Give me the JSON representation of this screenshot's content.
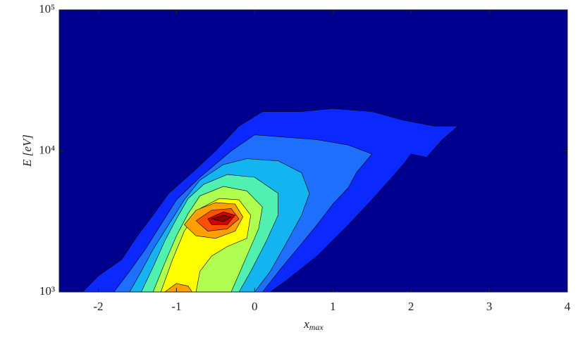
{
  "chart_data": {
    "type": "filled-contour",
    "xlabel": "x",
    "xlabel_sub": "max",
    "ylabel": "E [eV]",
    "xlim": [
      -2.5,
      4
    ],
    "xticks": [
      -2,
      -1,
      0,
      1,
      2,
      3,
      4
    ],
    "ylim": [
      1000,
      100000
    ],
    "yscale": "log",
    "yticks": [
      {
        "value": 1000,
        "label": "10³"
      },
      {
        "value": 10000,
        "label": "10⁴"
      },
      {
        "value": 100000,
        "label": "10⁵"
      }
    ],
    "background": "#00008f",
    "contours": [
      {
        "color": "#0a28ff",
        "x": [
          -2.2,
          -2.0,
          -1.7,
          -1.5,
          -1.3,
          -1.1,
          -0.8,
          -0.5,
          -0.2,
          0.1,
          0.6,
          1.0,
          1.5,
          1.9,
          2.3,
          2.6,
          2.4,
          2.2,
          2.0,
          1.9,
          1.7,
          1.5,
          1.2,
          0.8,
          0.4,
          0.2
        ],
        "y": [
          1000,
          1300,
          1700,
          2500,
          3500,
          5000,
          7000,
          10000,
          15000,
          19000,
          19000,
          20000,
          19000,
          16500,
          15000,
          15000,
          12000,
          9000,
          9500,
          8000,
          6000,
          4500,
          3000,
          1800,
          1200,
          1000
        ]
      },
      {
        "color": "#1f6fff",
        "x": [
          -1.8,
          -1.6,
          -1.4,
          -1.2,
          -1.0,
          -0.7,
          -0.3,
          0,
          0.4,
          0.8,
          1.2,
          1.5,
          1.3,
          1.2,
          1.0,
          0.8,
          0.6,
          0.35,
          0.1
        ],
        "y": [
          1000,
          1400,
          2000,
          3000,
          4500,
          6500,
          10000,
          13000,
          12500,
          12000,
          11000,
          9500,
          7000,
          5500,
          4200,
          3000,
          2200,
          1500,
          1000
        ]
      },
      {
        "color": "#14b4f0",
        "x": [
          -1.6,
          -1.45,
          -1.3,
          -1.1,
          -0.9,
          -0.7,
          -0.4,
          -0.1,
          0.3,
          0.6,
          0.7,
          0.6,
          0.4,
          0.2,
          0
        ],
        "y": [
          1000,
          1400,
          2000,
          3000,
          4500,
          6200,
          8000,
          8800,
          8500,
          7000,
          5000,
          3500,
          2200,
          1400,
          1000
        ]
      },
      {
        "color": "#50f0b0",
        "x": [
          -1.45,
          -1.3,
          -1.15,
          -1.0,
          -0.85,
          -0.65,
          -0.35,
          0,
          0.3,
          0.3,
          0.15,
          -0.05,
          -0.2
        ],
        "y": [
          1000,
          1500,
          2300,
          3300,
          4600,
          5800,
          6800,
          6500,
          5000,
          3500,
          2300,
          1400,
          1000
        ]
      },
      {
        "color": "#b0ff50",
        "x": [
          -1.3,
          -1.15,
          -1.0,
          -0.85,
          -0.7,
          -0.4,
          -0.1,
          0.1,
          0.05,
          -0.1,
          -0.3
        ],
        "y": [
          1000,
          1600,
          2500,
          3600,
          4800,
          5600,
          5200,
          4000,
          2800,
          1800,
          1000
        ]
      },
      {
        "color": "#ffff00",
        "x": [
          -1.2,
          -1.05,
          -0.9,
          -0.7,
          -0.45,
          -0.2,
          -0.05,
          -0.1,
          -0.35,
          -0.55,
          -0.7,
          -0.75
        ],
        "y": [
          1000,
          1700,
          2700,
          3900,
          4600,
          4500,
          3500,
          2400,
          2100,
          1800,
          1400,
          1000
        ]
      },
      {
        "color": "#ffa000",
        "x": [
          -0.9,
          -0.75,
          -0.5,
          -0.25,
          -0.15,
          -0.25,
          -0.5,
          -0.75
        ],
        "y": [
          3000,
          3800,
          4300,
          4200,
          3400,
          2700,
          2400,
          2500
        ]
      },
      {
        "color": "#ffa000",
        "x": [
          -1.15,
          -1.0,
          -0.85,
          -0.8
        ],
        "y": [
          1000,
          1150,
          1100,
          1000
        ]
      },
      {
        "color": "#ff5000",
        "x": [
          -0.75,
          -0.55,
          -0.3,
          -0.2,
          -0.35,
          -0.6
        ],
        "y": [
          3200,
          3800,
          3900,
          3300,
          2800,
          2700
        ]
      },
      {
        "color": "#d00000",
        "x": [
          -0.6,
          -0.4,
          -0.25,
          -0.35,
          -0.55
        ],
        "y": [
          3300,
          3700,
          3500,
          3000,
          3000
        ]
      },
      {
        "color": "#900000",
        "x": [
          -0.55,
          -0.4,
          -0.3,
          -0.4
        ],
        "y": [
          3300,
          3500,
          3400,
          3150
        ]
      }
    ]
  }
}
